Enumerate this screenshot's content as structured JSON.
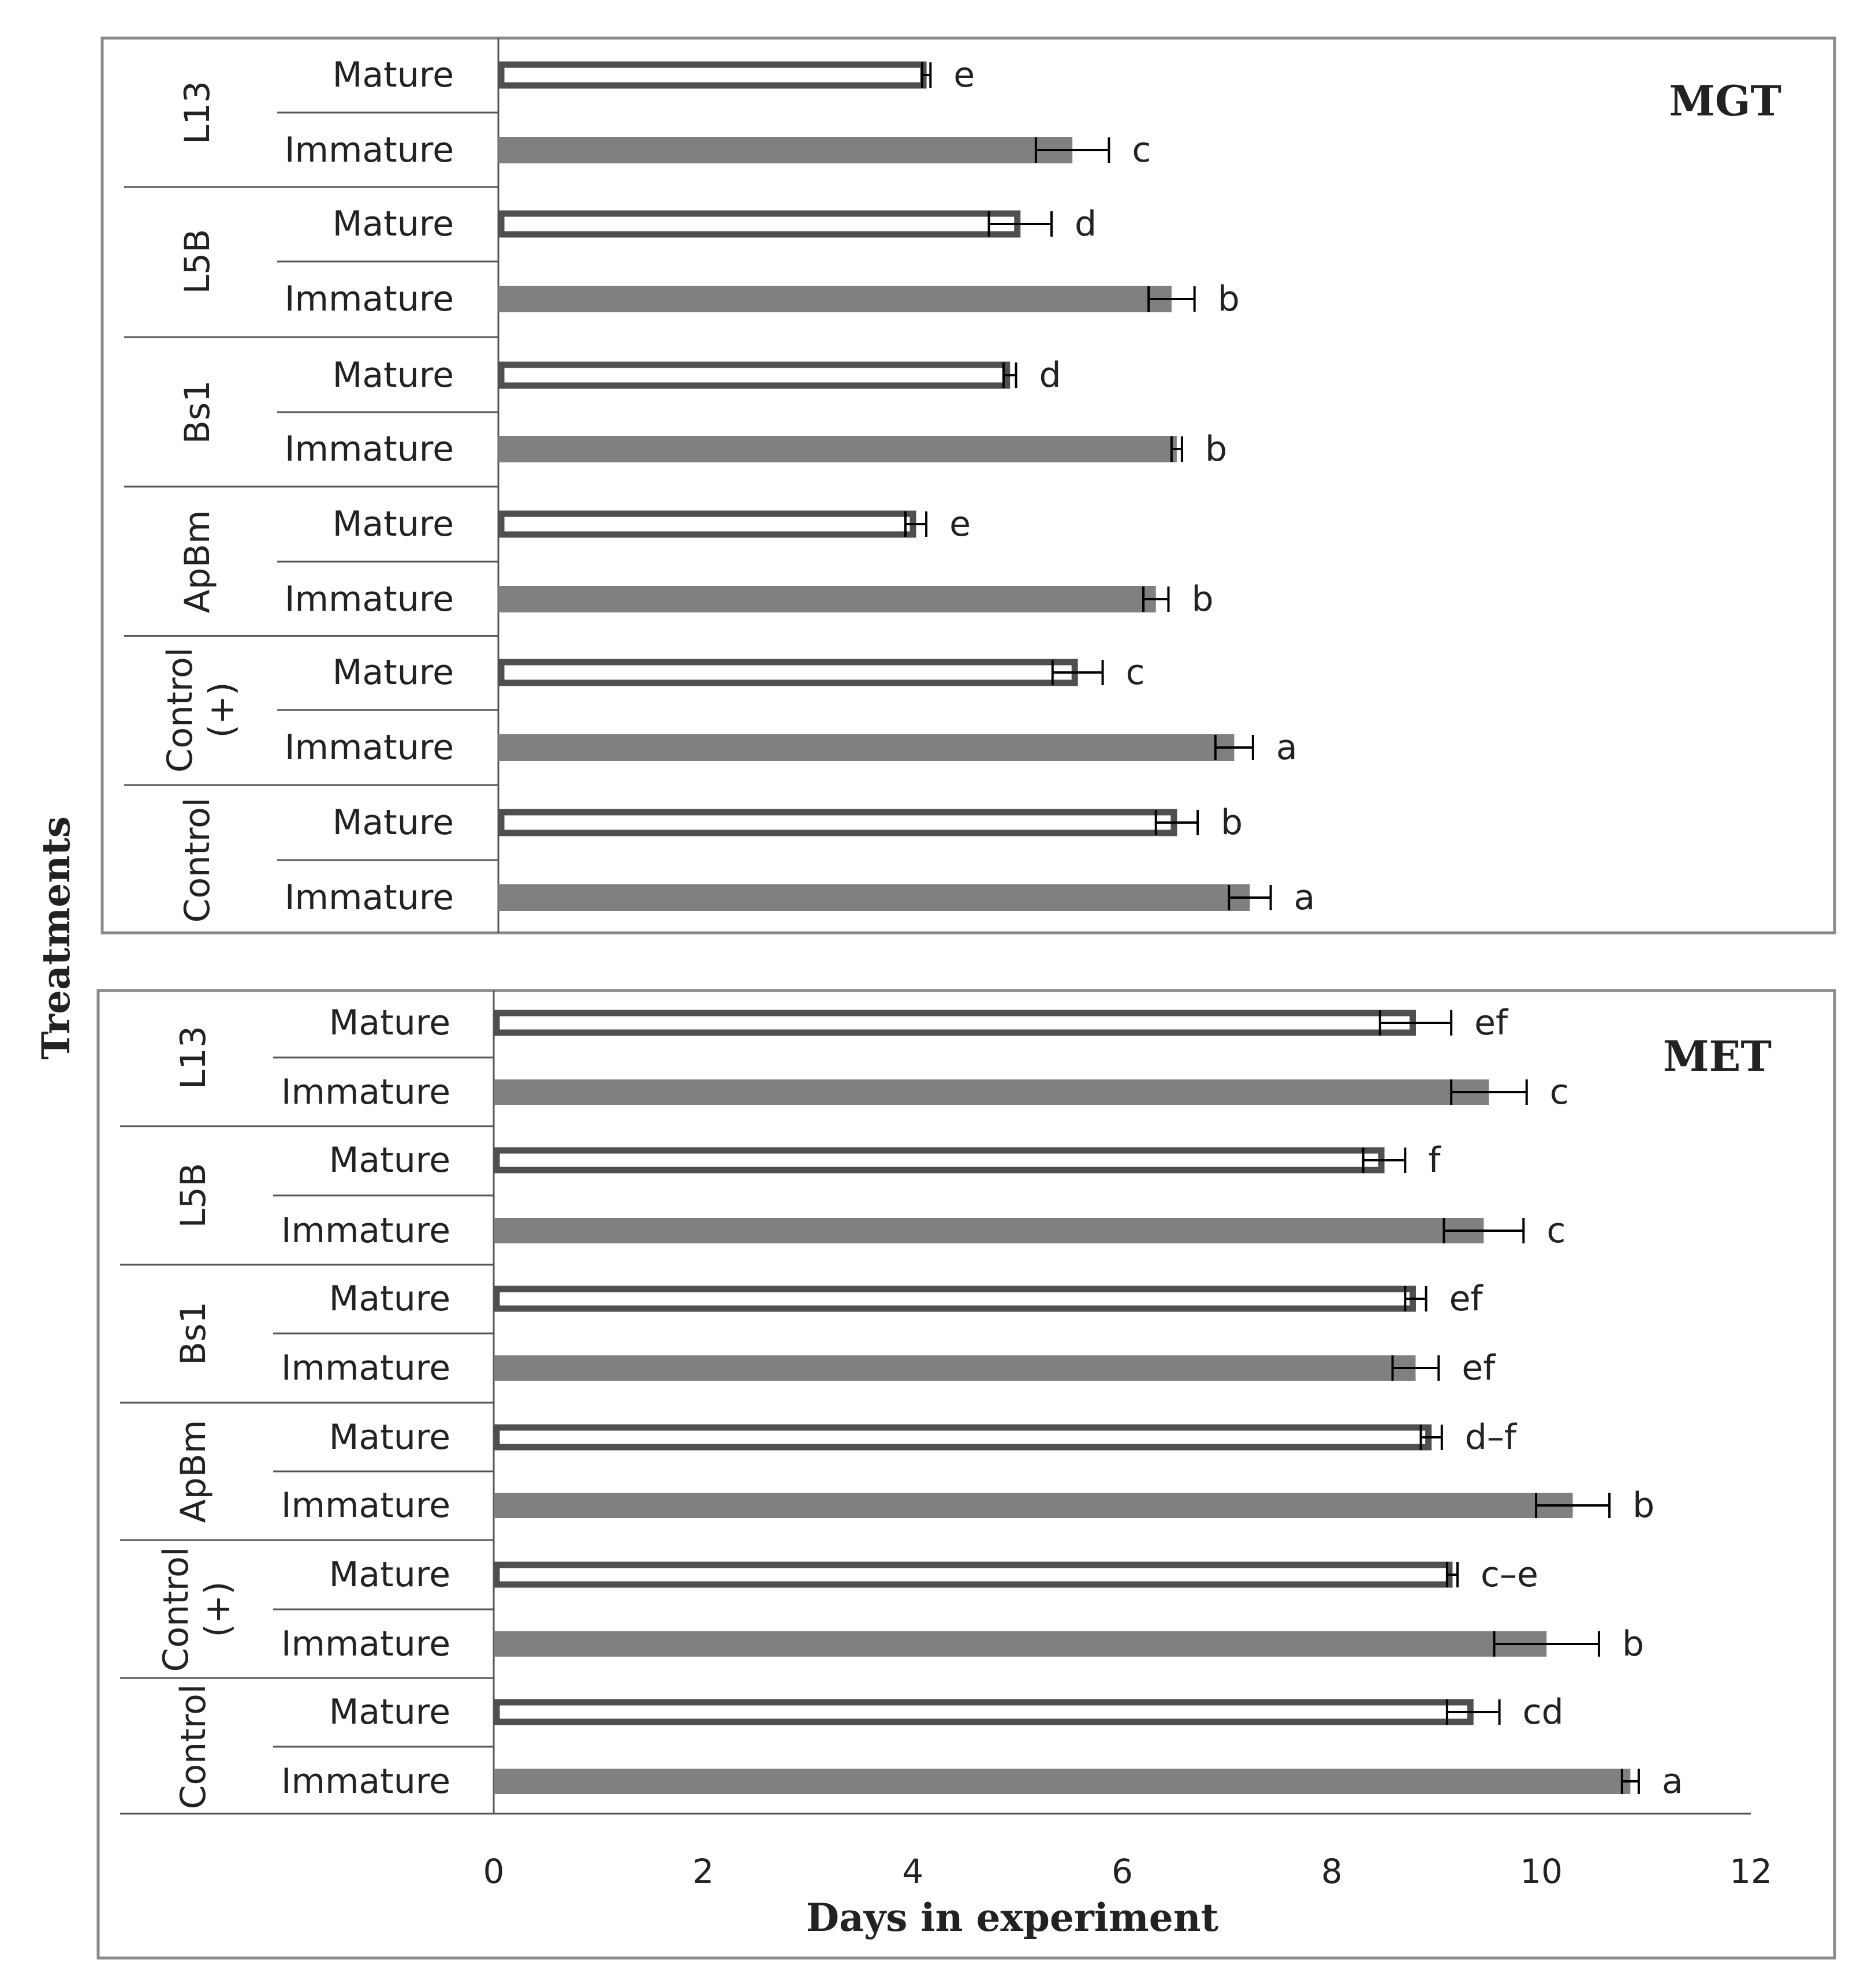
{
  "chart_data": {
    "type": "bar",
    "orientation": "horizontal",
    "ylabel": "Treatments",
    "xlabel": "Days in experiment",
    "xlim": [
      0,
      12
    ],
    "xticks": [
      "0",
      "2",
      "4",
      "6",
      "8",
      "10",
      "12"
    ],
    "groups": [
      "L13",
      "L5B",
      "Bs1",
      "ApBm",
      "Control (+)",
      "Control"
    ],
    "categories": [
      "Mature",
      "Immature"
    ],
    "series_colors": {
      "Mature": "#ffffff",
      "Immature": "#808080",
      "outline": "#4f4f4f"
    },
    "panels": [
      {
        "title": "MGT",
        "rows": [
          {
            "group": "L13",
            "category": "Mature",
            "value": 4.1,
            "error": 0.04,
            "letter": "e"
          },
          {
            "group": "L13",
            "category": "Immature",
            "value": 5.5,
            "error": 0.35,
            "letter": "c"
          },
          {
            "group": "L5B",
            "category": "Mature",
            "value": 5.0,
            "error": 0.3,
            "letter": "d"
          },
          {
            "group": "L5B",
            "category": "Immature",
            "value": 6.45,
            "error": 0.22,
            "letter": "b"
          },
          {
            "group": "Bs1",
            "category": "Mature",
            "value": 4.9,
            "error": 0.06,
            "letter": "d"
          },
          {
            "group": "Bs1",
            "category": "Immature",
            "value": 6.5,
            "error": 0.05,
            "letter": "b"
          },
          {
            "group": "ApBm",
            "category": "Mature",
            "value": 4.0,
            "error": 0.1,
            "letter": "e"
          },
          {
            "group": "ApBm",
            "category": "Immature",
            "value": 6.3,
            "error": 0.12,
            "letter": "b"
          },
          {
            "group": "Control (+)",
            "category": "Mature",
            "value": 5.55,
            "error": 0.24,
            "letter": "c"
          },
          {
            "group": "Control (+)",
            "category": "Immature",
            "value": 7.05,
            "error": 0.18,
            "letter": "a"
          },
          {
            "group": "Control",
            "category": "Mature",
            "value": 6.5,
            "error": 0.2,
            "letter": "b"
          },
          {
            "group": "Control",
            "category": "Immature",
            "value": 7.2,
            "error": 0.2,
            "letter": "a"
          }
        ]
      },
      {
        "title": "MET",
        "rows": [
          {
            "group": "L13",
            "category": "Mature",
            "value": 8.8,
            "error": 0.34,
            "letter": "ef"
          },
          {
            "group": "L13",
            "category": "Immature",
            "value": 9.5,
            "error": 0.36,
            "letter": "c"
          },
          {
            "group": "L5B",
            "category": "Mature",
            "value": 8.5,
            "error": 0.2,
            "letter": "f"
          },
          {
            "group": "L5B",
            "category": "Immature",
            "value": 9.45,
            "error": 0.38,
            "letter": "c"
          },
          {
            "group": "Bs1",
            "category": "Mature",
            "value": 8.8,
            "error": 0.1,
            "letter": "ef"
          },
          {
            "group": "Bs1",
            "category": "Immature",
            "value": 8.8,
            "error": 0.22,
            "letter": "ef"
          },
          {
            "group": "ApBm",
            "category": "Mature",
            "value": 8.95,
            "error": 0.1,
            "letter": "d–f"
          },
          {
            "group": "ApBm",
            "category": "Immature",
            "value": 10.3,
            "error": 0.35,
            "letter": "b"
          },
          {
            "group": "Control (+)",
            "category": "Mature",
            "value": 9.15,
            "error": 0.05,
            "letter": "c–e"
          },
          {
            "group": "Control (+)",
            "category": "Immature",
            "value": 10.05,
            "error": 0.5,
            "letter": "b"
          },
          {
            "group": "Control",
            "category": "Mature",
            "value": 9.35,
            "error": 0.25,
            "letter": "cd"
          },
          {
            "group": "Control",
            "category": "Immature",
            "value": 10.85,
            "error": 0.08,
            "letter": "a"
          }
        ]
      }
    ]
  }
}
